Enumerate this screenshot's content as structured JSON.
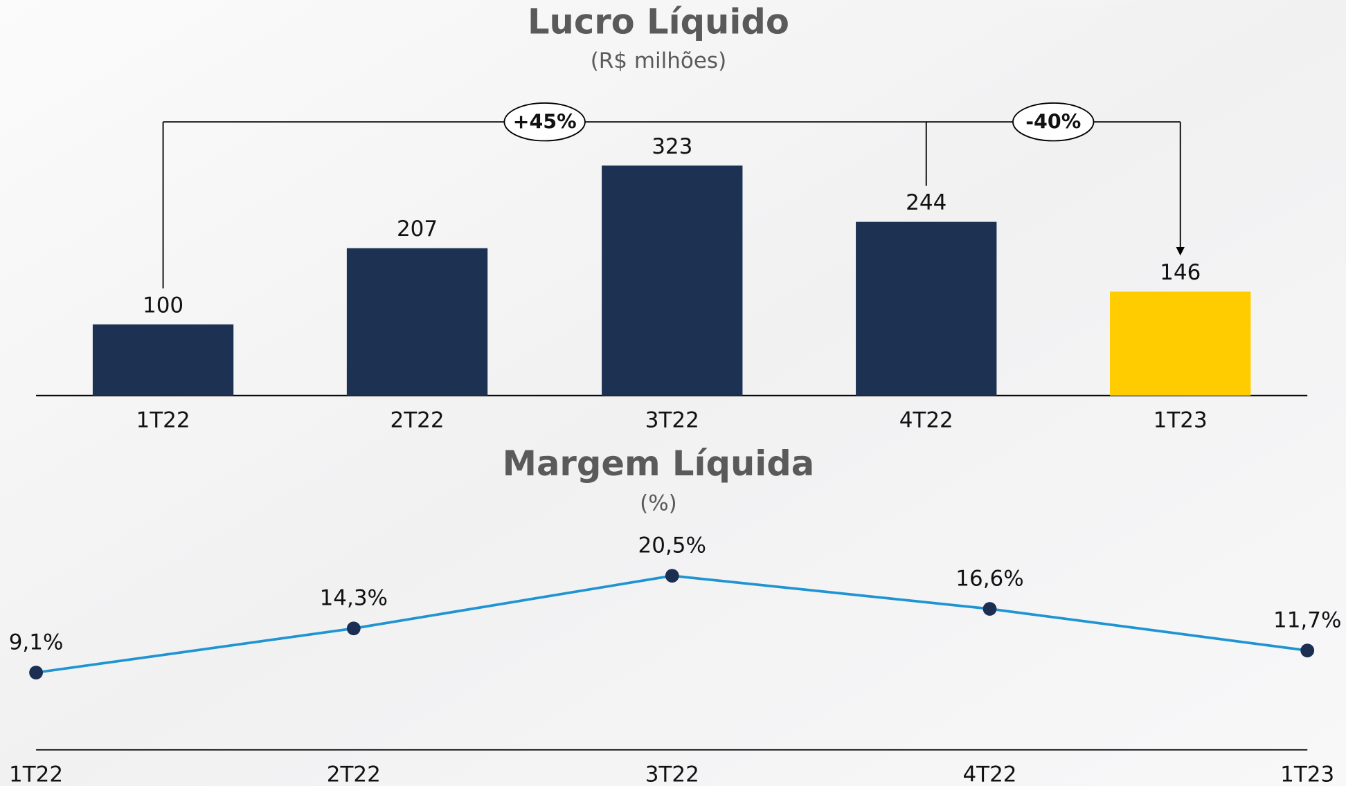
{
  "chart_data": [
    {
      "type": "bar",
      "title": "Lucro Líquido",
      "subtitle": "(R$ milhões)",
      "categories": [
        "1T22",
        "2T22",
        "3T22",
        "4T22",
        "1T23"
      ],
      "values": [
        100,
        207,
        323,
        244,
        146
      ],
      "colors": [
        "#1d3153",
        "#1d3153",
        "#1d3153",
        "#1d3153",
        "#ffcc00"
      ],
      "annotations": [
        {
          "text": "+45%",
          "from": "1T22",
          "to": "1T23"
        },
        {
          "text": "-40%",
          "from": "4T22",
          "to": "1T23"
        }
      ]
    },
    {
      "type": "line",
      "title": "Margem Líquida",
      "subtitle": "(%)",
      "categories": [
        "1T22",
        "2T22",
        "3T22",
        "4T22",
        "1T23"
      ],
      "values": [
        9.1,
        14.3,
        20.5,
        16.6,
        11.7
      ],
      "value_labels": [
        "9,1%",
        "14,3%",
        "20,5%",
        "16,6%",
        "11,7%"
      ],
      "color": "#1f94d2",
      "marker_color": "#1c2f52"
    }
  ]
}
